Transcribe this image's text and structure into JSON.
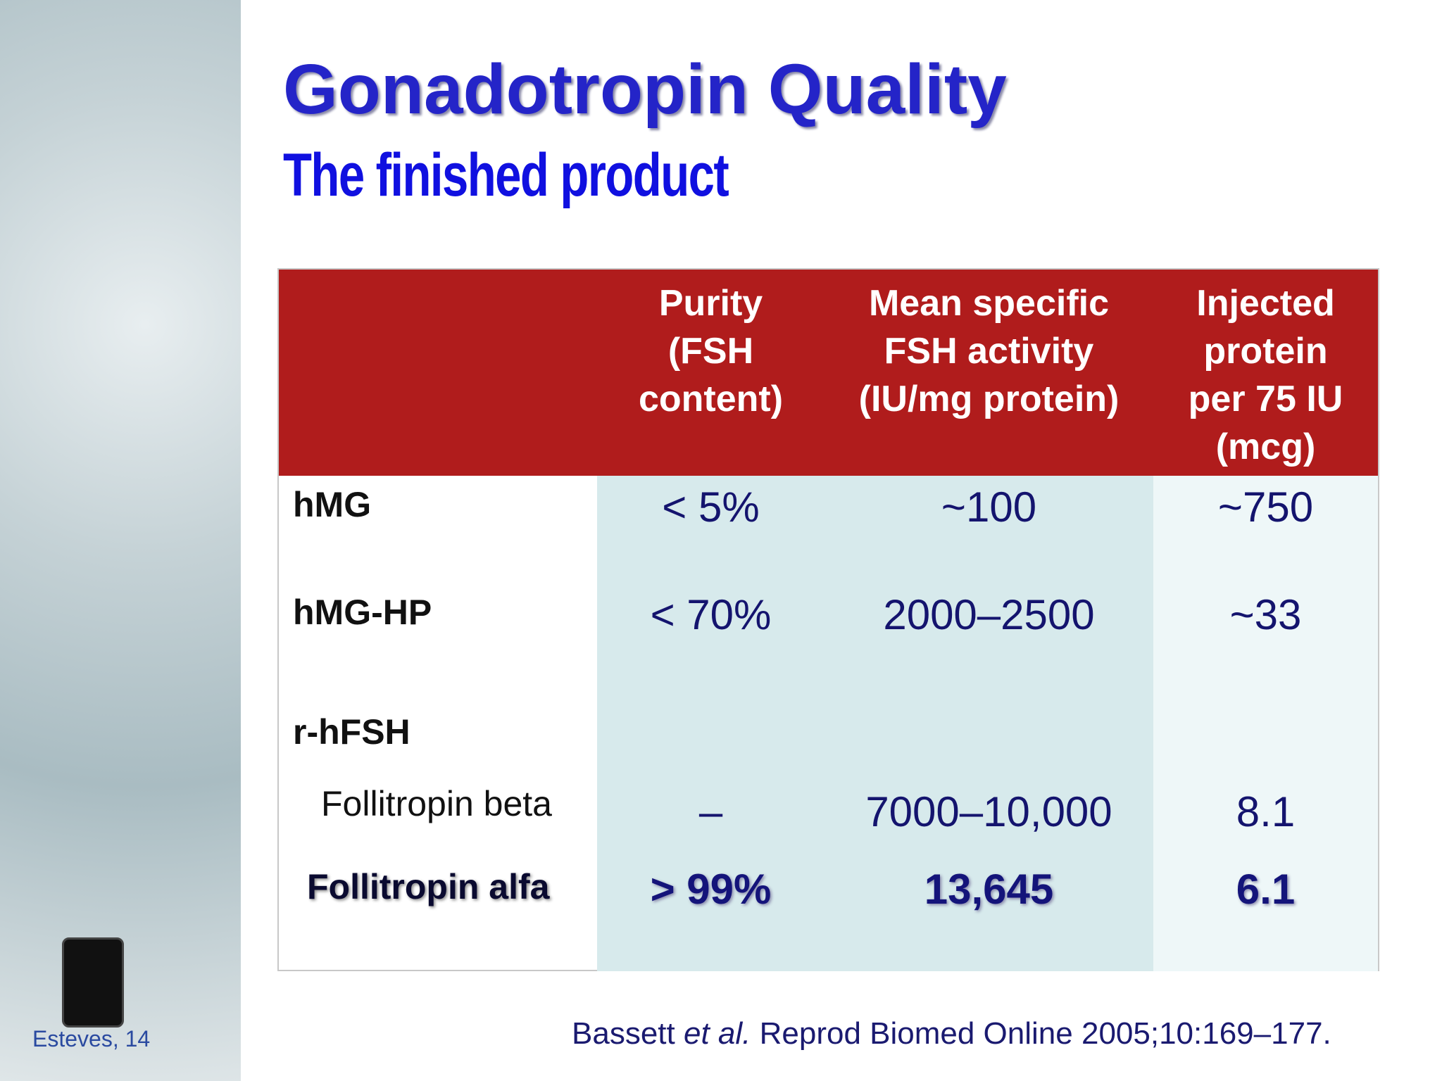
{
  "header": {
    "title": "Gonadotropin Quality",
    "subtitle": "The finished product"
  },
  "table": {
    "columns": [
      [
        "Purity",
        "(FSH",
        "content)"
      ],
      [
        "Mean specific",
        "FSH activity",
        "(IU/mg protein)"
      ],
      [
        "Injected",
        "protein",
        "per 75 IU",
        "(mcg)"
      ]
    ],
    "rows": [
      {
        "label": "hMG",
        "values": [
          "< 5%",
          "~100",
          "~750"
        ]
      },
      {
        "label": "hMG-HP",
        "values": [
          "< 70%",
          "2000–2500",
          "~33"
        ]
      },
      {
        "label": "r-hFSH"
      },
      {
        "label": "Follitropin beta",
        "values": [
          "–",
          "7000–10,000",
          "8.1"
        ]
      },
      {
        "label": "Follitropin alfa",
        "values": [
          "> 99%",
          "13,645",
          "6.1"
        ]
      }
    ]
  },
  "citation": {
    "authors": "Bassett",
    "etal": "et al.",
    "source": "Reprod Biomed Online 2005;10:169–177."
  },
  "footer": "Esteves, 14"
}
